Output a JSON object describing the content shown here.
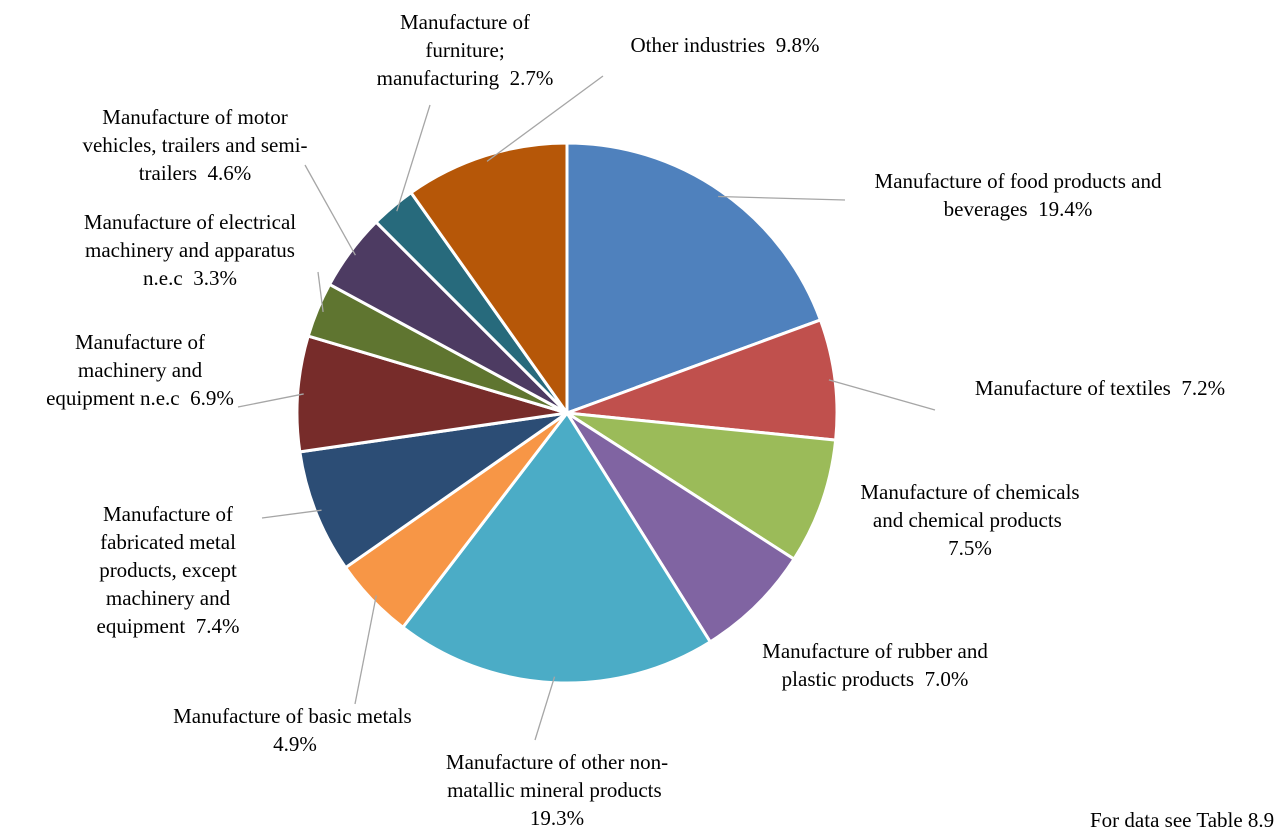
{
  "chart_data": {
    "type": "pie",
    "categories": [
      "Manufacture of food products and beverages",
      "Manufacture of textiles",
      "Manufacture of chemicals and chemical products",
      "Manufacture of  rubber and plastic products",
      "Manufacture of other non-matallic mineral products",
      "Manufacture of basic metals",
      "Manufacture of fabricated metal products, except machinery and equipment",
      "Manufacture of machinery and equipment n.e.c",
      "Manufacture of electrical machinery and apparatus n.e.c",
      "Manufacture of motor vehicles, trailers and semi-trailers",
      "Manufacture of furniture; manufacturing",
      "Other industries"
    ],
    "values": [
      19.4,
      7.2,
      7.5,
      7.0,
      19.3,
      4.9,
      7.4,
      6.9,
      3.3,
      4.6,
      2.7,
      9.8
    ],
    "value_labels": [
      "19.4%",
      "7.2%",
      "7.5%",
      "7.0%",
      "19.3%",
      "4.9%",
      "7.4%",
      "6.9%",
      "3.3%",
      "4.6%",
      "2.7%",
      "9.8%"
    ],
    "colors": [
      "#4f81bd",
      "#c0504d",
      "#9bbb59",
      "#8064a2",
      "#4bacc6",
      "#f79646",
      "#2c4d75",
      "#772c2a",
      "#5f7530",
      "#4d3b62",
      "#276a7c",
      "#b65708"
    ],
    "note": "For data see Table 8.9"
  }
}
